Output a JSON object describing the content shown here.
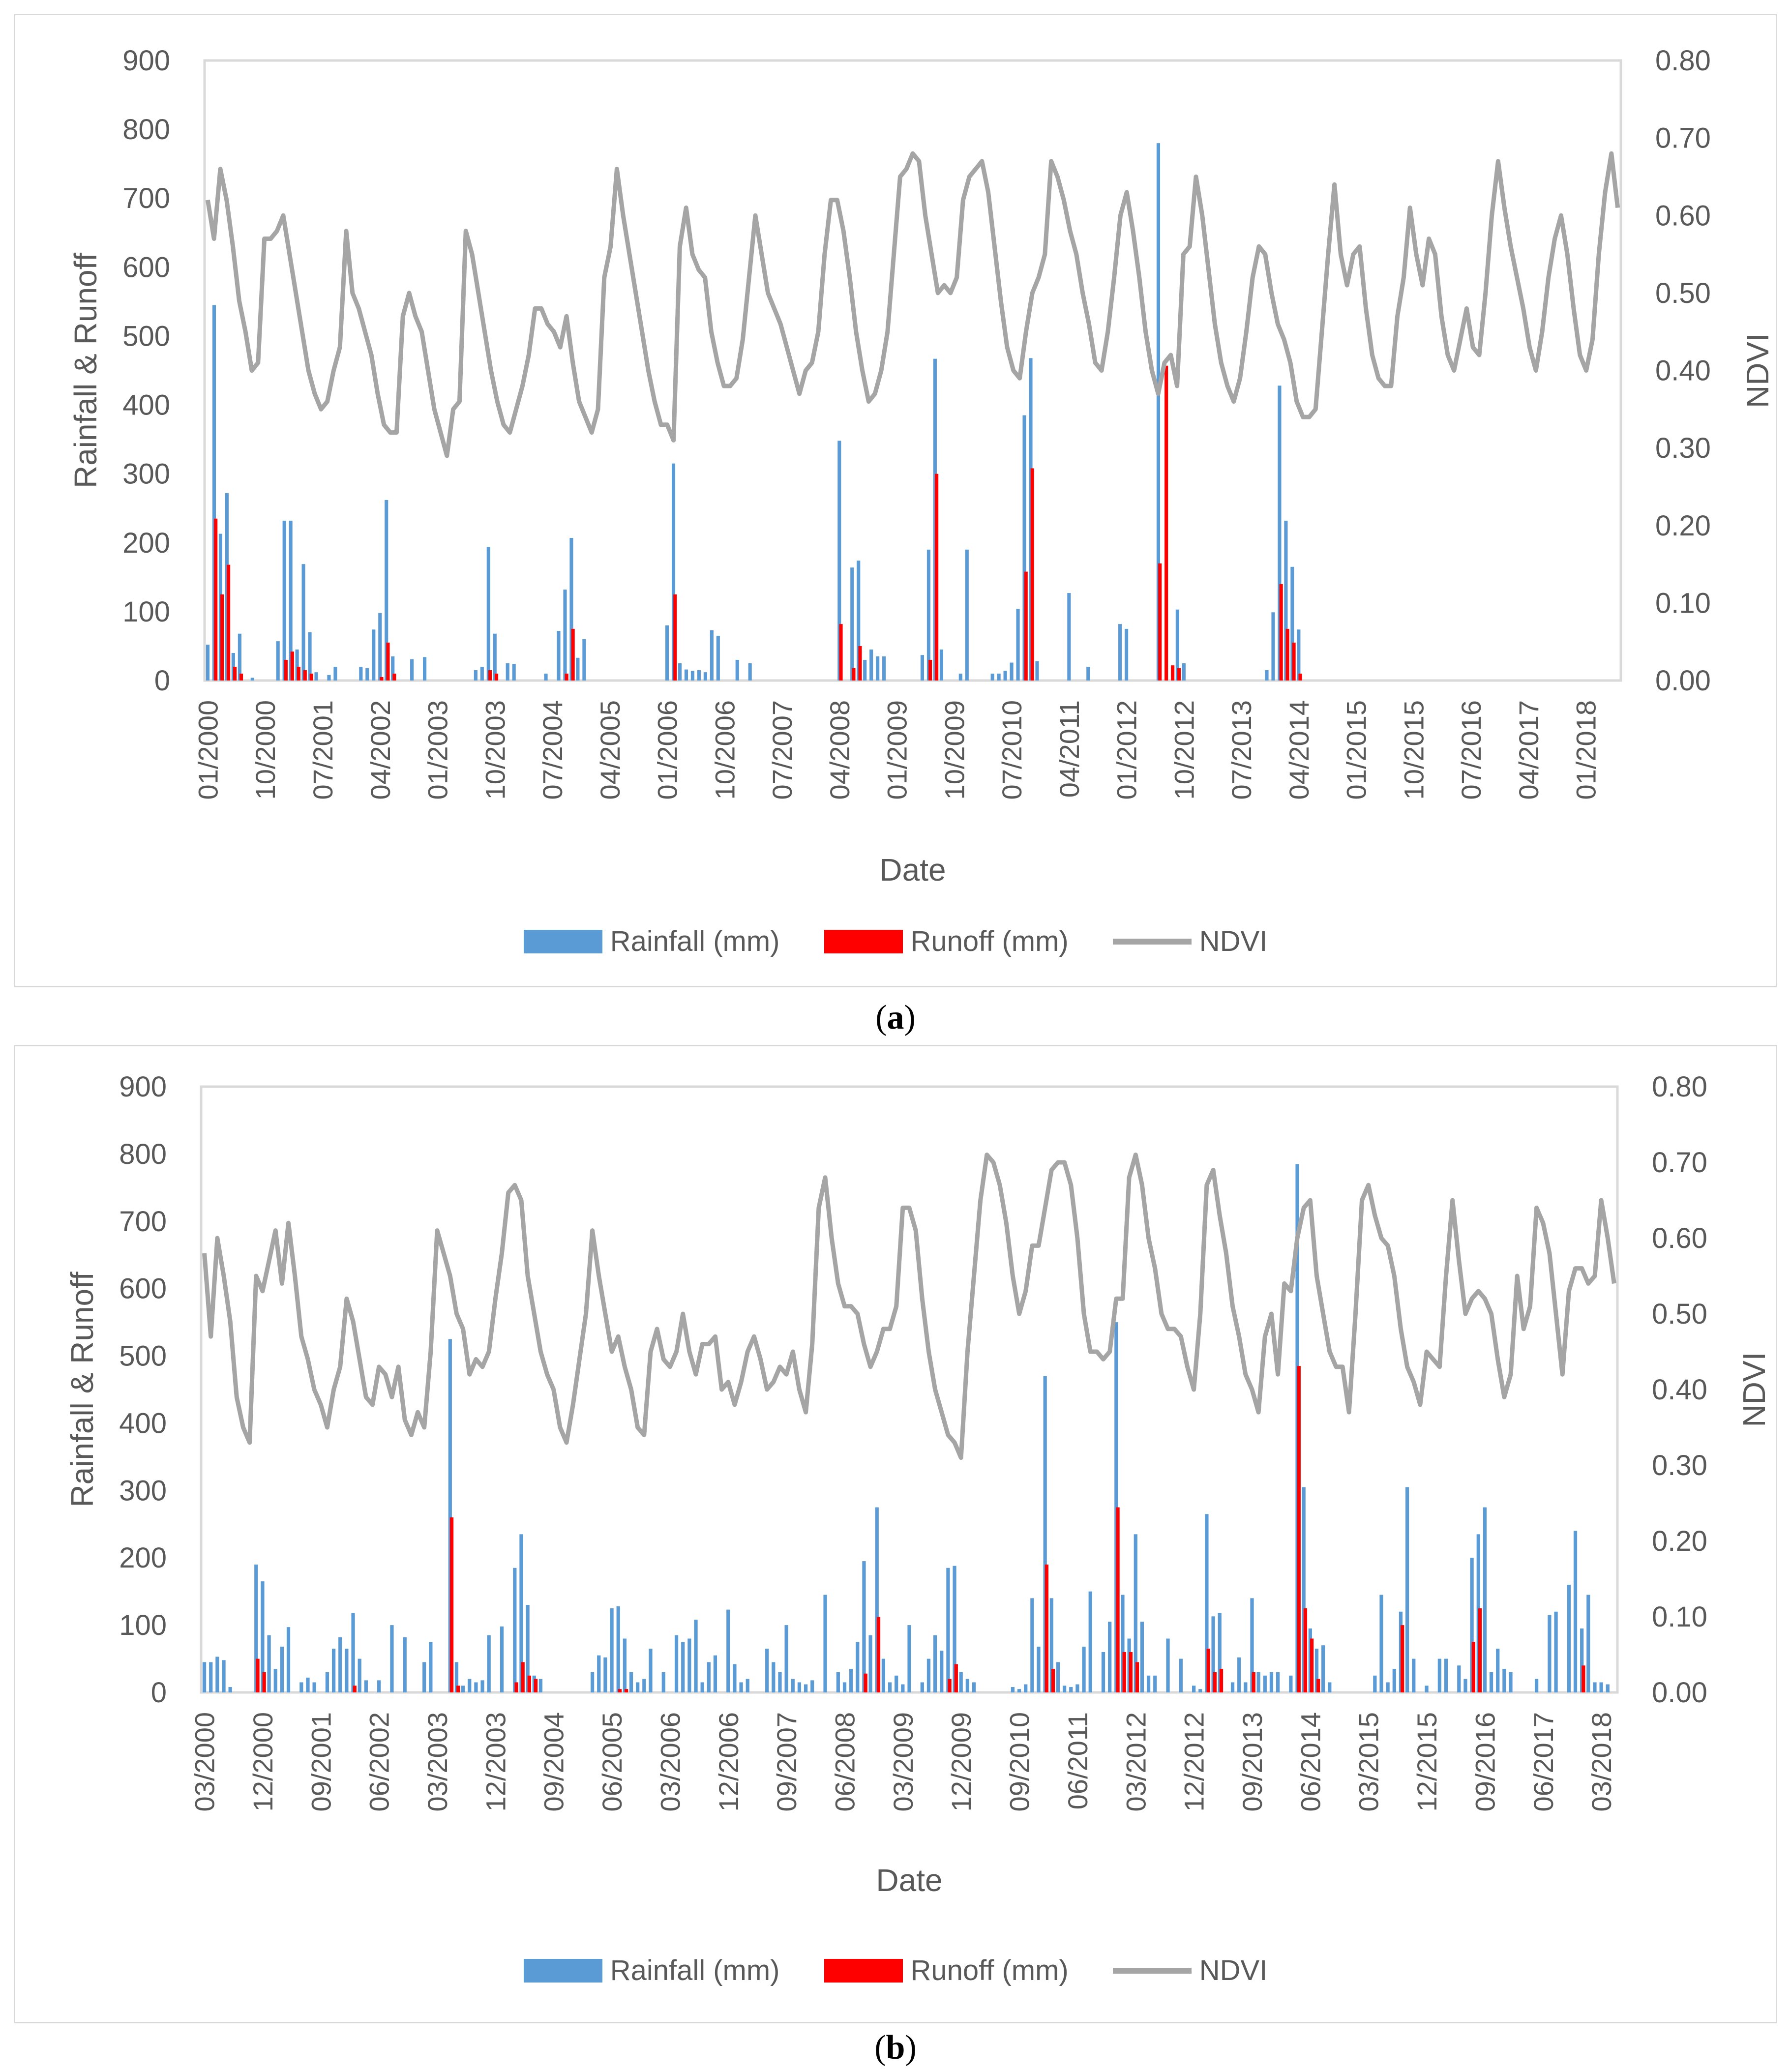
{
  "caption_a": "a",
  "caption_b": "b",
  "legend": {
    "rainfall": "Rainfall (mm)",
    "runoff": "Runoff (mm)",
    "ndvi": "NDVI"
  },
  "colors": {
    "rainfall": "#5b9bd5",
    "runoff": "#ff0000",
    "ndvi": "#a5a5a5",
    "axis": "#595959",
    "frame": "#d9d9d9"
  },
  "chart_data": [
    {
      "id": "a",
      "type": "bar+line",
      "xlabel": "Date",
      "ylabel": "Rainfall & Runoff",
      "y2label": "NDVI",
      "ylim": [
        0,
        900
      ],
      "yticks": [
        "0",
        "100",
        "200",
        "300",
        "400",
        "500",
        "600",
        "700",
        "800",
        "900"
      ],
      "y2lim": [
        0,
        0.8
      ],
      "y2ticks": [
        "0.00",
        "0.10",
        "0.20",
        "0.30",
        "0.40",
        "0.50",
        "0.60",
        "0.70",
        "0.80"
      ],
      "x_tick_labels": [
        "01/2000",
        "10/2000",
        "07/2001",
        "04/2002",
        "01/2003",
        "10/2003",
        "07/2004",
        "04/2005",
        "01/2006",
        "10/2006",
        "07/2007",
        "04/2008",
        "01/2009",
        "10/2009",
        "07/2010",
        "04/2011",
        "01/2012",
        "10/2012",
        "07/2013",
        "04/2014",
        "01/2015",
        "10/2015",
        "07/2016",
        "04/2017",
        "01/2018"
      ],
      "x_tick_step_months": 9,
      "n_months": 222,
      "rainfall": [
        52,
        545,
        213,
        272,
        40,
        68,
        0,
        4,
        0,
        0,
        0,
        57,
        232,
        232,
        45,
        169,
        70,
        12,
        0,
        8,
        20,
        0,
        0,
        0,
        20,
        18,
        74,
        98,
        262,
        35,
        0,
        0,
        31,
        0,
        34,
        0,
        0,
        0,
        0,
        0,
        0,
        0,
        15,
        20,
        194,
        68,
        0,
        25,
        24,
        0,
        0,
        0,
        0,
        10,
        0,
        72,
        132,
        207,
        33,
        60,
        0,
        0,
        0,
        0,
        0,
        0,
        0,
        0,
        0,
        0,
        0,
        0,
        80,
        315,
        25,
        16,
        14,
        15,
        12,
        73,
        65,
        0,
        0,
        30,
        0,
        25,
        0,
        0,
        0,
        0,
        0,
        0,
        0,
        0,
        0,
        0,
        0,
        0,
        0,
        348,
        0,
        164,
        174,
        30,
        45,
        35,
        35,
        0,
        0,
        0,
        0,
        0,
        37,
        190,
        467,
        45,
        0,
        0,
        10,
        190,
        0,
        0,
        0,
        10,
        10,
        14,
        26,
        104,
        385,
        468,
        28,
        0,
        0,
        0,
        0,
        127,
        0,
        0,
        20,
        0,
        0,
        0,
        0,
        82,
        75,
        0,
        0,
        0,
        0,
        780,
        0,
        0,
        103,
        25,
        0,
        0,
        0,
        0,
        0,
        0,
        0,
        0,
        0,
        0,
        0,
        0,
        15,
        99,
        428,
        232,
        165,
        74,
        0,
        0,
        0,
        0,
        0,
        0,
        0,
        0,
        0,
        0,
        0,
        0,
        0,
        0,
        0,
        0,
        0,
        0,
        0,
        0,
        0,
        0,
        0,
        0,
        0,
        0,
        0,
        0,
        0,
        0,
        0,
        0,
        0,
        0,
        0,
        0,
        0,
        0,
        0,
        0,
        0,
        0,
        0,
        0,
        0,
        0,
        0,
        0,
        0,
        0,
        0,
        0
      ],
      "runoff": [
        0,
        235,
        125,
        168,
        20,
        10,
        0,
        0,
        0,
        0,
        0,
        0,
        30,
        42,
        20,
        15,
        10,
        0,
        0,
        0,
        0,
        0,
        0,
        0,
        0,
        0,
        0,
        5,
        55,
        10,
        0,
        0,
        0,
        0,
        0,
        0,
        0,
        0,
        0,
        0,
        0,
        0,
        0,
        0,
        15,
        10,
        0,
        0,
        0,
        0,
        0,
        0,
        0,
        0,
        0,
        0,
        10,
        75,
        0,
        0,
        0,
        0,
        0,
        0,
        0,
        0,
        0,
        0,
        0,
        0,
        0,
        0,
        0,
        125,
        0,
        0,
        0,
        0,
        0,
        0,
        0,
        0,
        0,
        0,
        0,
        0,
        0,
        0,
        0,
        0,
        0,
        0,
        0,
        0,
        0,
        0,
        0,
        0,
        0,
        82,
        0,
        18,
        50,
        0,
        0,
        0,
        0,
        0,
        0,
        0,
        0,
        0,
        0,
        30,
        300,
        0,
        0,
        0,
        0,
        0,
        0,
        0,
        0,
        0,
        0,
        0,
        0,
        0,
        158,
        308,
        0,
        0,
        0,
        0,
        0,
        0,
        0,
        0,
        0,
        0,
        0,
        0,
        0,
        0,
        0,
        0,
        0,
        0,
        0,
        170,
        457,
        22,
        18,
        0,
        0,
        0,
        0,
        0,
        0,
        0,
        0,
        0,
        0,
        0,
        0,
        0,
        0,
        0,
        140,
        75,
        55,
        10,
        0,
        0,
        0,
        0,
        0,
        0,
        0,
        0,
        0,
        0,
        0,
        0,
        0,
        0,
        0,
        0,
        0,
        0,
        0,
        0,
        0,
        0,
        0,
        0,
        0,
        0,
        0,
        0,
        0,
        0,
        0,
        0,
        0,
        0,
        0,
        0,
        0,
        0,
        0,
        0,
        0,
        0,
        0,
        0,
        0,
        0,
        0,
        0,
        0,
        0,
        0,
        0,
        0,
        0
      ],
      "ndvi": [
        0.62,
        0.57,
        0.66,
        0.62,
        0.56,
        0.49,
        0.45,
        0.4,
        0.41,
        0.57,
        0.57,
        0.58,
        0.6,
        0.55,
        0.5,
        0.45,
        0.4,
        0.37,
        0.35,
        0.36,
        0.4,
        0.43,
        0.58,
        0.5,
        0.48,
        0.45,
        0.42,
        0.37,
        0.33,
        0.32,
        0.32,
        0.47,
        0.5,
        0.47,
        0.45,
        0.4,
        0.35,
        0.32,
        0.29,
        0.35,
        0.36,
        0.58,
        0.55,
        0.5,
        0.45,
        0.4,
        0.36,
        0.33,
        0.32,
        0.35,
        0.38,
        0.42,
        0.48,
        0.48,
        0.46,
        0.45,
        0.43,
        0.47,
        0.41,
        0.36,
        0.34,
        0.32,
        0.35,
        0.52,
        0.56,
        0.66,
        0.6,
        0.55,
        0.5,
        0.45,
        0.4,
        0.36,
        0.33,
        0.33,
        0.31,
        0.56,
        0.61,
        0.55,
        0.53,
        0.52,
        0.45,
        0.41,
        0.38,
        0.38,
        0.39,
        0.44,
        0.52,
        0.6,
        0.55,
        0.5,
        0.48,
        0.46,
        0.43,
        0.4,
        0.37,
        0.4,
        0.41,
        0.45,
        0.55,
        0.62,
        0.62,
        0.58,
        0.52,
        0.45,
        0.4,
        0.36,
        0.37,
        0.4,
        0.45,
        0.55,
        0.65,
        0.66,
        0.68,
        0.67,
        0.6,
        0.55,
        0.5,
        0.51,
        0.5,
        0.52,
        0.62,
        0.65,
        0.66,
        0.67,
        0.63,
        0.56,
        0.49,
        0.43,
        0.4,
        0.39,
        0.45,
        0.5,
        0.52,
        0.55,
        0.67,
        0.65,
        0.62,
        0.58,
        0.55,
        0.5,
        0.46,
        0.41,
        0.4,
        0.45,
        0.52,
        0.6,
        0.63,
        0.58,
        0.52,
        0.45,
        0.4,
        0.37,
        0.41,
        0.42,
        0.38,
        0.55,
        0.56,
        0.65,
        0.6,
        0.53,
        0.46,
        0.41,
        0.38,
        0.36,
        0.39,
        0.45,
        0.52,
        0.56,
        0.55,
        0.5,
        0.46,
        0.44,
        0.41,
        0.36,
        0.34,
        0.34,
        0.35,
        0.45,
        0.55,
        0.64,
        0.55,
        0.51,
        0.55,
        0.56,
        0.48,
        0.42,
        0.39,
        0.38,
        0.38,
        0.47,
        0.52,
        0.61,
        0.55,
        0.51,
        0.57,
        0.55,
        0.47,
        0.42,
        0.4,
        0.44,
        0.48,
        0.43,
        0.42,
        0.5,
        0.6,
        0.67,
        0.61,
        0.56,
        0.52,
        0.48,
        0.43,
        0.4,
        0.45,
        0.52,
        0.57,
        0.6,
        0.55,
        0.48,
        0.42,
        0.4,
        0.44,
        0.55,
        0.63,
        0.68,
        0.61
      ],
      "legend": "bottom"
    },
    {
      "id": "b",
      "type": "bar+line",
      "xlabel": "Date",
      "ylabel": "Rainfall & Runoff",
      "y2label": "NDVI",
      "ylim": [
        0,
        900
      ],
      "yticks": [
        "0",
        "100",
        "200",
        "300",
        "400",
        "500",
        "600",
        "700",
        "800",
        "900"
      ],
      "y2lim": [
        0,
        0.8
      ],
      "y2ticks": [
        "0.00",
        "0.10",
        "0.20",
        "0.30",
        "0.40",
        "0.50",
        "0.60",
        "0.70",
        "0.80"
      ],
      "x_tick_labels": [
        "03/2000",
        "12/2000",
        "09/2001",
        "06/2002",
        "03/2003",
        "12/2003",
        "09/2004",
        "06/2005",
        "03/2006",
        "12/2006",
        "09/2007",
        "06/2008",
        "03/2009",
        "12/2009",
        "09/2010",
        "06/2011",
        "03/2012",
        "12/2012",
        "09/2013",
        "06/2014",
        "03/2015",
        "12/2015",
        "09/2016",
        "06/2017",
        "03/2018"
      ],
      "x_tick_step_months": 9,
      "n_months": 219,
      "rainfall": [
        45,
        45,
        53,
        48,
        8,
        0,
        0,
        0,
        190,
        165,
        85,
        35,
        68,
        97,
        0,
        15,
        22,
        15,
        0,
        30,
        65,
        82,
        65,
        118,
        50,
        18,
        0,
        18,
        0,
        100,
        0,
        82,
        0,
        0,
        45,
        75,
        0,
        0,
        525,
        45,
        10,
        20,
        15,
        18,
        85,
        0,
        98,
        0,
        185,
        235,
        130,
        25,
        20,
        0,
        0,
        0,
        0,
        0,
        0,
        0,
        30,
        55,
        52,
        125,
        128,
        80,
        30,
        15,
        20,
        65,
        0,
        30,
        0,
        85,
        75,
        80,
        108,
        15,
        45,
        55,
        0,
        123,
        42,
        15,
        20,
        0,
        0,
        65,
        45,
        30,
        100,
        20,
        15,
        12,
        18,
        0,
        145,
        0,
        30,
        15,
        35,
        75,
        195,
        85,
        275,
        50,
        15,
        25,
        12,
        100,
        0,
        15,
        50,
        85,
        62,
        185,
        188,
        30,
        20,
        15,
        0,
        0,
        0,
        0,
        0,
        8,
        5,
        12,
        140,
        68,
        470,
        140,
        45,
        10,
        8,
        12,
        68,
        150,
        0,
        60,
        105,
        550,
        145,
        80,
        235,
        105,
        25,
        25,
        0,
        80,
        0,
        50,
        0,
        10,
        5,
        265,
        113,
        118,
        0,
        15,
        52,
        15,
        140,
        30,
        25,
        30,
        30,
        0,
        25,
        785,
        305,
        95,
        65,
        70,
        15,
        0,
        0,
        0,
        0,
        0,
        0,
        25,
        145,
        15,
        35,
        120,
        305,
        50,
        0,
        10,
        0,
        50,
        50,
        0,
        40,
        20,
        200,
        235,
        275,
        30,
        65,
        35,
        30,
        0,
        0,
        0,
        20,
        0,
        115,
        120,
        0,
        160,
        240,
        95,
        145,
        15,
        15,
        12,
        0
      ],
      "runoff": [
        0,
        0,
        0,
        0,
        0,
        0,
        0,
        0,
        50,
        30,
        0,
        0,
        0,
        0,
        0,
        0,
        0,
        0,
        0,
        0,
        0,
        0,
        0,
        10,
        0,
        0,
        0,
        0,
        0,
        0,
        0,
        0,
        0,
        0,
        0,
        0,
        0,
        0,
        260,
        10,
        0,
        0,
        0,
        0,
        0,
        0,
        0,
        0,
        15,
        45,
        25,
        20,
        0,
        0,
        0,
        0,
        0,
        0,
        0,
        0,
        0,
        0,
        0,
        0,
        5,
        5,
        0,
        0,
        0,
        0,
        0,
        0,
        0,
        0,
        0,
        0,
        0,
        0,
        0,
        0,
        0,
        0,
        0,
        0,
        0,
        0,
        0,
        0,
        0,
        0,
        0,
        0,
        0,
        0,
        0,
        0,
        0,
        0,
        0,
        0,
        0,
        0,
        28,
        0,
        112,
        0,
        0,
        0,
        0,
        0,
        0,
        0,
        0,
        0,
        0,
        20,
        42,
        0,
        0,
        0,
        0,
        0,
        0,
        0,
        0,
        0,
        0,
        0,
        0,
        0,
        190,
        35,
        0,
        0,
        0,
        0,
        0,
        0,
        0,
        0,
        0,
        275,
        60,
        60,
        45,
        0,
        0,
        0,
        0,
        0,
        0,
        0,
        0,
        0,
        0,
        65,
        30,
        35,
        0,
        0,
        0,
        0,
        30,
        0,
        0,
        0,
        0,
        0,
        0,
        485,
        125,
        80,
        20,
        0,
        0,
        0,
        0,
        0,
        0,
        0,
        0,
        0,
        0,
        0,
        0,
        100,
        0,
        0,
        0,
        0,
        0,
        0,
        0,
        0,
        0,
        0,
        75,
        125,
        0,
        0,
        0,
        0,
        0,
        0,
        0,
        0,
        0,
        0,
        0,
        0,
        0,
        0,
        0,
        40,
        0,
        0,
        0,
        0,
        0,
        0,
        0,
        0,
        0,
        0
      ],
      "ndvi": [
        0.58,
        0.47,
        0.6,
        0.55,
        0.49,
        0.39,
        0.35,
        0.33,
        0.55,
        0.53,
        0.57,
        0.61,
        0.54,
        0.62,
        0.55,
        0.47,
        0.44,
        0.4,
        0.38,
        0.35,
        0.4,
        0.43,
        0.52,
        0.49,
        0.44,
        0.39,
        0.38,
        0.43,
        0.42,
        0.39,
        0.43,
        0.36,
        0.34,
        0.37,
        0.35,
        0.45,
        0.61,
        0.58,
        0.55,
        0.5,
        0.48,
        0.42,
        0.44,
        0.43,
        0.45,
        0.52,
        0.58,
        0.66,
        0.67,
        0.65,
        0.55,
        0.5,
        0.45,
        0.42,
        0.4,
        0.35,
        0.33,
        0.38,
        0.44,
        0.5,
        0.61,
        0.55,
        0.5,
        0.45,
        0.47,
        0.43,
        0.4,
        0.35,
        0.34,
        0.45,
        0.48,
        0.44,
        0.43,
        0.45,
        0.5,
        0.45,
        0.42,
        0.46,
        0.46,
        0.47,
        0.4,
        0.41,
        0.38,
        0.41,
        0.45,
        0.47,
        0.44,
        0.4,
        0.41,
        0.43,
        0.42,
        0.45,
        0.4,
        0.37,
        0.46,
        0.64,
        0.68,
        0.6,
        0.54,
        0.51,
        0.51,
        0.5,
        0.46,
        0.43,
        0.45,
        0.48,
        0.48,
        0.51,
        0.64,
        0.64,
        0.61,
        0.52,
        0.45,
        0.4,
        0.37,
        0.34,
        0.33,
        0.31,
        0.45,
        0.55,
        0.65,
        0.71,
        0.7,
        0.67,
        0.62,
        0.55,
        0.5,
        0.53,
        0.59,
        0.59,
        0.64,
        0.69,
        0.7,
        0.7,
        0.67,
        0.6,
        0.5,
        0.45,
        0.45,
        0.44,
        0.45,
        0.52,
        0.52,
        0.68,
        0.71,
        0.67,
        0.6,
        0.56,
        0.5,
        0.48,
        0.48,
        0.47,
        0.43,
        0.4,
        0.5,
        0.67,
        0.69,
        0.63,
        0.58,
        0.51,
        0.47,
        0.42,
        0.4,
        0.37,
        0.47,
        0.5,
        0.42,
        0.54,
        0.53,
        0.6,
        0.64,
        0.65,
        0.55,
        0.5,
        0.45,
        0.43,
        0.43,
        0.37,
        0.5,
        0.65,
        0.67,
        0.63,
        0.6,
        0.59,
        0.55,
        0.48,
        0.43,
        0.41,
        0.38,
        0.45,
        0.44,
        0.43,
        0.55,
        0.65,
        0.57,
        0.5,
        0.52,
        0.53,
        0.52,
        0.5,
        0.44,
        0.39,
        0.42,
        0.55,
        0.48,
        0.51,
        0.64,
        0.62,
        0.58,
        0.5,
        0.42,
        0.53,
        0.56,
        0.56,
        0.54,
        0.55,
        0.65,
        0.6,
        0.54
      ]
    }
  ]
}
